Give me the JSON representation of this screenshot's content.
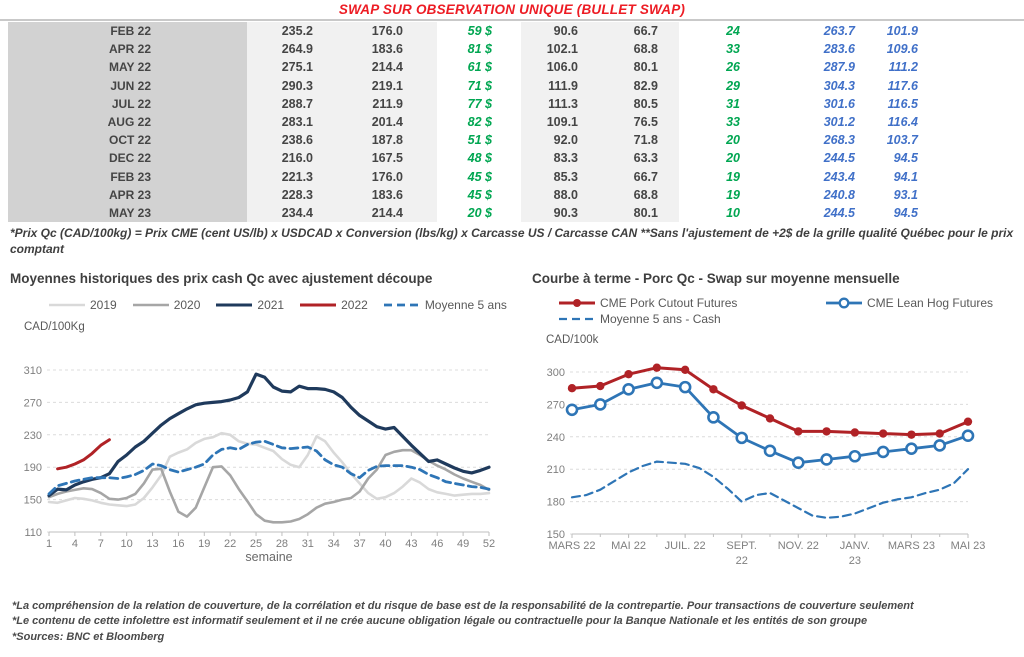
{
  "title": "SWAP SUR OBSERVATION UNIQUE (BULLET SWAP)",
  "table": {
    "rows": [
      [
        "FEB 22",
        "235.2",
        "176.0",
        "59 $",
        "90.6",
        "66.7",
        "24",
        "263.7",
        "101.9"
      ],
      [
        "APR 22",
        "264.9",
        "183.6",
        "81 $",
        "102.1",
        "68.8",
        "33",
        "283.6",
        "109.6"
      ],
      [
        "MAY 22",
        "275.1",
        "214.4",
        "61 $",
        "106.0",
        "80.1",
        "26",
        "287.9",
        "111.2"
      ],
      [
        "JUN 22",
        "290.3",
        "219.1",
        "71 $",
        "111.9",
        "82.9",
        "29",
        "304.3",
        "117.6"
      ],
      [
        "JUL 22",
        "288.7",
        "211.9",
        "77 $",
        "111.3",
        "80.5",
        "31",
        "301.6",
        "116.5"
      ],
      [
        "AUG 22",
        "283.1",
        "201.4",
        "82 $",
        "109.1",
        "76.5",
        "33",
        "301.2",
        "116.4"
      ],
      [
        "OCT 22",
        "238.6",
        "187.8",
        "51 $",
        "92.0",
        "71.8",
        "20",
        "268.3",
        "103.7"
      ],
      [
        "DEC 22",
        "216.0",
        "167.5",
        "48 $",
        "83.3",
        "63.3",
        "20",
        "244.5",
        "94.5"
      ],
      [
        "FEB 23",
        "221.3",
        "176.0",
        "45 $",
        "85.3",
        "66.7",
        "19",
        "243.4",
        "94.1"
      ],
      [
        "APR 23",
        "228.3",
        "183.6",
        "45 $",
        "88.0",
        "68.8",
        "19",
        "240.8",
        "93.1"
      ],
      [
        "MAY 23",
        "234.4",
        "214.4",
        "20 $",
        "90.3",
        "80.1",
        "10",
        "244.5",
        "94.5"
      ]
    ]
  },
  "table_footnote": "*Prix Qc (CAD/100kg) = Prix CME (cent US/lb) x USDCAD x Conversion (lbs/kg) x Carcasse US / Carcasse CAN **Sans l'ajustement de +2$ de la grille qualité Québec pour le prix comptant",
  "colors": {
    "title_red": "#ed1c24",
    "table_green": "#00a651",
    "table_blue": "#4070c8",
    "series_navy": "#1f3a5c",
    "series_red": "#b02226",
    "series_blue": "#2e75b6",
    "series_gray": "#a6a6a6",
    "series_lightgray": "#d9d9d9"
  },
  "chart_data": [
    {
      "type": "line",
      "title": "Moyennes historiques des prix cash Qc avec ajustement découpe",
      "unit_label": "CAD/100Kg",
      "xlabel": "semaine",
      "xlim": [
        1,
        52
      ],
      "ylim": [
        110,
        310
      ],
      "ystep": 40,
      "grid": true,
      "legend_position": "top",
      "xticks": {
        "values": [
          1,
          4,
          7,
          10,
          13,
          16,
          19,
          22,
          25,
          28,
          31,
          34,
          37,
          40,
          43,
          46,
          49,
          52
        ],
        "labels": [
          "1",
          "4",
          "7",
          "10",
          "13",
          "16",
          "19",
          "22",
          "25",
          "28",
          "31",
          "34",
          "37",
          "40",
          "43",
          "46",
          "49",
          "52"
        ]
      },
      "series": [
        {
          "name": "2019",
          "color": "#d9d9d9",
          "width": 2.6,
          "x0": 1,
          "y": [
            147,
            146,
            149,
            152,
            151,
            149,
            146,
            144,
            143,
            142,
            144,
            152,
            165,
            180,
            203,
            208,
            212,
            220,
            225,
            227,
            232,
            230,
            222,
            219,
            218,
            214,
            210,
            200,
            193,
            190,
            205,
            228,
            222,
            208,
            196,
            182,
            170,
            158,
            151,
            153,
            158,
            166,
            176,
            171,
            163,
            159,
            157,
            155,
            156,
            157,
            157,
            158
          ]
        },
        {
          "name": "2020",
          "color": "#a6a6a6",
          "width": 2.6,
          "x0": 1,
          "y": [
            153,
            157,
            160,
            162,
            164,
            163,
            158,
            151,
            150,
            152,
            157,
            170,
            187,
            188,
            160,
            135,
            129,
            140,
            165,
            190,
            191,
            180,
            163,
            148,
            132,
            124,
            122,
            122,
            123,
            126,
            132,
            140,
            145,
            147,
            150,
            152,
            160,
            176,
            187,
            205,
            209,
            211,
            211,
            205,
            198,
            192,
            187,
            181,
            176,
            172,
            168,
            162
          ]
        },
        {
          "name": "2021",
          "color": "#1f3a5c",
          "width": 3.2,
          "x0": 1,
          "y": [
            155,
            163,
            162,
            168,
            172,
            175,
            177,
            182,
            197,
            205,
            215,
            222,
            232,
            242,
            250,
            256,
            262,
            267,
            269,
            270,
            271,
            273,
            276,
            283,
            305,
            301,
            289,
            284,
            283,
            290,
            287,
            287,
            286,
            283,
            276,
            264,
            254,
            247,
            240,
            237,
            239,
            228,
            217,
            207,
            197,
            199,
            194,
            189,
            185,
            183,
            186,
            190
          ]
        },
        {
          "name": "2022",
          "color": "#b02226",
          "width": 3,
          "x0": 2,
          "y": [
            188,
            190,
            194,
            199,
            207,
            217,
            224
          ]
        },
        {
          "name": "Moyenne 5 ans",
          "color": "#2e75b6",
          "width": 2.8,
          "dash": true,
          "x0": 1,
          "y": [
            157,
            167,
            170,
            173,
            175,
            177,
            177,
            177,
            176,
            178,
            181,
            186,
            194,
            192,
            187,
            184,
            187,
            190,
            194,
            205,
            212,
            214,
            212,
            218,
            221,
            222,
            218,
            214,
            213,
            214,
            215,
            210,
            199,
            193,
            190,
            182,
            177,
            186,
            191,
            192,
            192,
            192,
            190,
            187,
            181,
            177,
            172,
            170,
            168,
            166,
            165,
            163
          ]
        }
      ]
    },
    {
      "type": "line",
      "title": "Courbe à terme - Porc Qc - Swap sur moyenne mensuelle",
      "unit_label": "CAD/100k",
      "xlabel": "",
      "xlim": [
        0,
        14
      ],
      "ylim": [
        150,
        300
      ],
      "ystep": 30,
      "grid": true,
      "legend_position": "top",
      "xticks": {
        "values": [
          0,
          2,
          4,
          6,
          8,
          10,
          12,
          14
        ],
        "labels": [
          "MARS 22",
          "MAI 22",
          "JUIL. 22",
          "SEPT.|22",
          "NOV. 22",
          "JANV.|23",
          "MARS 23",
          "MAI 23"
        ]
      },
      "series": [
        {
          "name": "CME Pork Cutout Futures",
          "color": "#b02226",
          "width": 3,
          "marker": "dot",
          "x0": 0,
          "y": [
            285,
            287,
            298,
            304,
            302,
            284,
            269,
            257,
            245,
            245,
            244,
            243,
            242,
            243,
            254
          ]
        },
        {
          "name": "CME Lean Hog Futures",
          "color": "#2e75b6",
          "width": 2.8,
          "marker": "circle",
          "x0": 0,
          "y": [
            265,
            270,
            284,
            290,
            286,
            258,
            239,
            227,
            216,
            219,
            222,
            226,
            229,
            232,
            241
          ]
        },
        {
          "name": "Moyenne 5 ans - Cash",
          "color": "#2e75b6",
          "width": 2.2,
          "dash": true,
          "x": [
            0,
            0.5,
            1,
            1.5,
            2,
            2.5,
            3,
            3.5,
            4,
            4.5,
            5,
            5.5,
            6,
            6.5,
            7,
            7.5,
            8,
            8.5,
            9,
            9.5,
            10,
            10.5,
            11,
            11.5,
            12,
            12.5,
            13,
            13.5,
            14
          ],
          "y": [
            184,
            186,
            191,
            199,
            207,
            213,
            217,
            216,
            215,
            211,
            203,
            192,
            180,
            186,
            188,
            181,
            174,
            167,
            165,
            166,
            169,
            174,
            179,
            182,
            184,
            188,
            191,
            197,
            210
          ]
        }
      ]
    }
  ],
  "disclaimers": [
    "*La compréhension de la relation de couverture, de la corrélation et du risque de base est de la responsabilité de la contrepartie. Pour transactions de couverture seulement",
    "*Le contenu de cette infolettre est informatif seulement et il ne crée aucune obligation légale ou contractuelle pour la Banque Nationale et les entités de son groupe",
    "*Sources: BNC et Bloomberg"
  ]
}
